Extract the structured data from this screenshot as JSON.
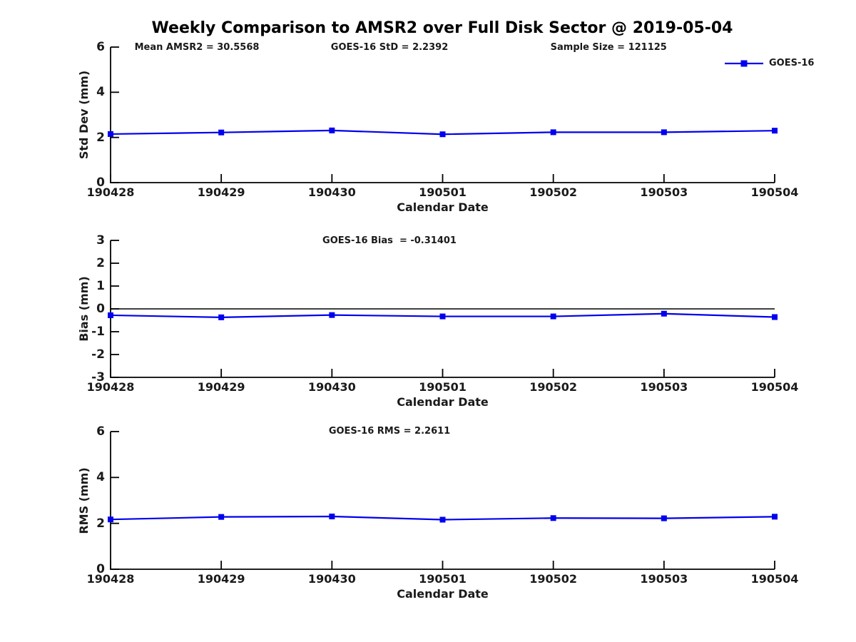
{
  "title": "Weekly Comparison to AMSR2 over Full Disk Sector @ 2019-05-04",
  "legend": {
    "label": "GOES-16",
    "position": "top-right-outside"
  },
  "colors": {
    "line": "#0000EE",
    "axis": "#000000",
    "text": "#1a1a1a",
    "zero_line": "#000000",
    "background": "#ffffff"
  },
  "chart_data": [
    {
      "type": "line",
      "title": "",
      "ylabel": "Std Dev (mm)",
      "xlabel": "Calendar Date",
      "ylim": [
        0,
        6
      ],
      "yticks": [
        0,
        2,
        4,
        6
      ],
      "grid": false,
      "categories": [
        "190428",
        "190429",
        "190430",
        "190501",
        "190502",
        "190503",
        "190504"
      ],
      "series": [
        {
          "name": "GOES-16",
          "values": [
            2.15,
            2.22,
            2.31,
            2.14,
            2.23,
            2.23,
            2.3
          ]
        }
      ],
      "annotations": [
        "Mean AMSR2 = 30.5568",
        "GOES-16 StD = 2.2392",
        "Sample Size = 121125"
      ]
    },
    {
      "type": "line",
      "title": "",
      "ylabel": "Bias (mm)",
      "xlabel": "Calendar Date",
      "ylim": [
        -3,
        3
      ],
      "yticks": [
        -3,
        -2,
        -1,
        0,
        1,
        2,
        3
      ],
      "zero_line": true,
      "grid": false,
      "categories": [
        "190428",
        "190429",
        "190430",
        "190501",
        "190502",
        "190503",
        "190504"
      ],
      "series": [
        {
          "name": "GOES-16",
          "values": [
            -0.28,
            -0.37,
            -0.27,
            -0.33,
            -0.33,
            -0.21,
            -0.36
          ]
        }
      ],
      "annotations": [
        "GOES-16 Bias  = -0.31401"
      ]
    },
    {
      "type": "line",
      "title": "",
      "ylabel": "RMS (mm)",
      "xlabel": "Calendar Date",
      "ylim": [
        0,
        6
      ],
      "yticks": [
        0,
        2,
        4,
        6
      ],
      "grid": false,
      "categories": [
        "190428",
        "190429",
        "190430",
        "190501",
        "190502",
        "190503",
        "190504"
      ],
      "series": [
        {
          "name": "GOES-16",
          "values": [
            2.17,
            2.28,
            2.3,
            2.16,
            2.23,
            2.22,
            2.29
          ]
        }
      ],
      "annotations": [
        "GOES-16 RMS = 2.2611"
      ]
    }
  ]
}
